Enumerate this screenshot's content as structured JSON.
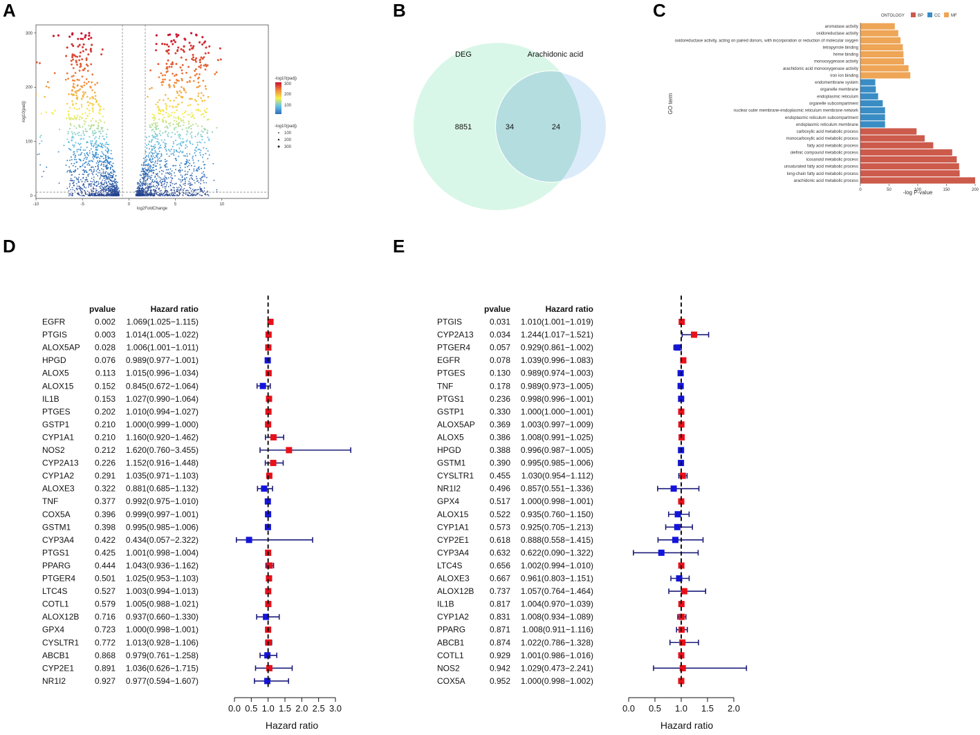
{
  "panels": {
    "a": "A",
    "b": "B",
    "c": "C",
    "d": "D",
    "e": "E"
  },
  "chart_data": [
    {
      "id": "A",
      "type": "scatter",
      "title": "",
      "xlabel": "log2FoldChange",
      "ylabel": "-log10(padj)",
      "xlim": [
        -10,
        15
      ],
      "ylim": [
        -5,
        315
      ],
      "xticks": [
        "-10",
        "-5",
        "0",
        "5",
        "10"
      ],
      "yticks": [
        "0",
        "100",
        "200",
        "300"
      ],
      "legend_color_title": "-log10(padj)",
      "legend_color_ticks": [
        "300",
        "200",
        "100"
      ],
      "legend_size_title": "-log10(padj)",
      "legend_size_ticks": [
        "100",
        "200",
        "300"
      ],
      "colors": {
        "low": "#23408e",
        "mid": "#f7f04d",
        "high": "#c8102e"
      }
    },
    {
      "id": "B",
      "type": "venn",
      "sets": [
        {
          "name": "DEG",
          "only": "8851",
          "color": "#d9f7e8",
          "label_color": "#3a6ea5"
        },
        {
          "name": "Arachidonic acid",
          "only": "24",
          "color": "#dcebfa",
          "label_color": "#7a3c8c"
        }
      ],
      "intersection": "34"
    },
    {
      "id": "C",
      "type": "bar",
      "orientation": "horizontal",
      "xlabel": "-log P-value",
      "ylabel": "GO term",
      "xlim": [
        0,
        200
      ],
      "xticks": [
        "0",
        "50",
        "100",
        "150",
        "200"
      ],
      "legend_title": "ONTOLOGY",
      "legend": [
        {
          "name": "BP",
          "color": "#cc5b4c"
        },
        {
          "name": "CC",
          "color": "#3a8dc4"
        },
        {
          "name": "MF",
          "color": "#eea556"
        }
      ],
      "categories": [
        {
          "term": "aromatase activity",
          "value": 60,
          "ont": "MF"
        },
        {
          "term": "oxidoreductase activity",
          "value": 66,
          "ont": "MF"
        },
        {
          "term": "oxidoreductase activity, acting on paired donors, with incorporation or reduction of molecular oxygen",
          "value": 70,
          "ont": "MF"
        },
        {
          "term": "tetrapyrrole binding",
          "value": 74,
          "ont": "MF"
        },
        {
          "term": "heme binding",
          "value": 75,
          "ont": "MF"
        },
        {
          "term": "monooxygenase activity",
          "value": 76,
          "ont": "MF"
        },
        {
          "term": "arachidonic acid monooxygenase activity",
          "value": 84,
          "ont": "MF"
        },
        {
          "term": "iron ion binding",
          "value": 87,
          "ont": "MF"
        },
        {
          "term": "endomembrane system",
          "value": 26,
          "ont": "CC"
        },
        {
          "term": "organelle membrane",
          "value": 27,
          "ont": "CC"
        },
        {
          "term": "endoplasmic reticulum",
          "value": 31,
          "ont": "CC"
        },
        {
          "term": "organelle subcompartment",
          "value": 39,
          "ont": "CC"
        },
        {
          "term": "nuclear outer membrane-endoplasmic reticulum membrane network",
          "value": 43,
          "ont": "CC"
        },
        {
          "term": "endoplasmic reticulum subcompartment",
          "value": 43,
          "ont": "CC"
        },
        {
          "term": "endoplasmic reticulum membrane",
          "value": 43,
          "ont": "CC"
        },
        {
          "term": "carboxylic acid metabolic process",
          "value": 98,
          "ont": "BP"
        },
        {
          "term": "monocarboxylic acid metabolic process",
          "value": 112,
          "ont": "BP"
        },
        {
          "term": "fatty acid metabolic process",
          "value": 127,
          "ont": "BP"
        },
        {
          "term": "olefinic compound metabolic process",
          "value": 160,
          "ont": "BP"
        },
        {
          "term": "icosanoid metabolic process",
          "value": 168,
          "ont": "BP"
        },
        {
          "term": "unsaturated fatty acid metabolic process",
          "value": 172,
          "ont": "BP"
        },
        {
          "term": "long-chain fatty acid metabolic process",
          "value": 173,
          "ont": "BP"
        },
        {
          "term": "arachidonic acid metabolic process",
          "value": 200,
          "ont": "BP"
        }
      ]
    },
    {
      "id": "D",
      "type": "forest",
      "col_pvalue": "pvalue",
      "col_hr": "Hazard ratio",
      "xlabel": "Hazard ratio",
      "xlim": [
        0,
        3
      ],
      "xticks": [
        "0.0",
        "0.5",
        "1.0",
        "1.5",
        "2.0",
        "2.5",
        "3.0"
      ],
      "colors": {
        "risk": "#e8101a",
        "protective": "#1414dc",
        "ci": "#1b1b7a"
      },
      "rows": [
        {
          "gene": "EGFR",
          "p": "0.002",
          "hr_text": "1.069(1.025−1.115)",
          "hr": 1.069,
          "lo": 1.025,
          "hi": 1.115
        },
        {
          "gene": "PTGIS",
          "p": "0.003",
          "hr_text": "1.014(1.005−1.022)",
          "hr": 1.014,
          "lo": 1.005,
          "hi": 1.022
        },
        {
          "gene": "ALOX5AP",
          "p": "0.028",
          "hr_text": "1.006(1.001−1.011)",
          "hr": 1.006,
          "lo": 1.001,
          "hi": 1.011
        },
        {
          "gene": "HPGD",
          "p": "0.076",
          "hr_text": "0.989(0.977−1.001)",
          "hr": 0.989,
          "lo": 0.977,
          "hi": 1.001
        },
        {
          "gene": "ALOX5",
          "p": "0.113",
          "hr_text": "1.015(0.996−1.034)",
          "hr": 1.015,
          "lo": 0.996,
          "hi": 1.034
        },
        {
          "gene": "ALOX15",
          "p": "0.152",
          "hr_text": "0.845(0.672−1.064)",
          "hr": 0.845,
          "lo": 0.672,
          "hi": 1.064
        },
        {
          "gene": "IL1B",
          "p": "0.153",
          "hr_text": "1.027(0.990−1.064)",
          "hr": 1.027,
          "lo": 0.99,
          "hi": 1.064
        },
        {
          "gene": "PTGES",
          "p": "0.202",
          "hr_text": "1.010(0.994−1.027)",
          "hr": 1.01,
          "lo": 0.994,
          "hi": 1.027
        },
        {
          "gene": "GSTP1",
          "p": "0.210",
          "hr_text": "1.000(0.999−1.000)",
          "hr": 1.0,
          "lo": 0.999,
          "hi": 1.0
        },
        {
          "gene": "CYP1A1",
          "p": "0.210",
          "hr_text": "1.160(0.920−1.462)",
          "hr": 1.16,
          "lo": 0.92,
          "hi": 1.462
        },
        {
          "gene": "NOS2",
          "p": "0.212",
          "hr_text": "1.620(0.760−3.455)",
          "hr": 1.62,
          "lo": 0.76,
          "hi": 3.455
        },
        {
          "gene": "CYP2A13",
          "p": "0.226",
          "hr_text": "1.152(0.916−1.448)",
          "hr": 1.152,
          "lo": 0.916,
          "hi": 1.448
        },
        {
          "gene": "CYP1A2",
          "p": "0.291",
          "hr_text": "1.035(0.971−1.103)",
          "hr": 1.035,
          "lo": 0.971,
          "hi": 1.103
        },
        {
          "gene": "ALOXE3",
          "p": "0.322",
          "hr_text": "0.881(0.685−1.132)",
          "hr": 0.881,
          "lo": 0.685,
          "hi": 1.132
        },
        {
          "gene": "TNF",
          "p": "0.377",
          "hr_text": "0.992(0.975−1.010)",
          "hr": 0.992,
          "lo": 0.975,
          "hi": 1.01
        },
        {
          "gene": "COX5A",
          "p": "0.396",
          "hr_text": "0.999(0.997−1.001)",
          "hr": 0.999,
          "lo": 0.997,
          "hi": 1.001
        },
        {
          "gene": "GSTM1",
          "p": "0.398",
          "hr_text": "0.995(0.985−1.006)",
          "hr": 0.995,
          "lo": 0.985,
          "hi": 1.006
        },
        {
          "gene": "CYP3A4",
          "p": "0.422",
          "hr_text": "0.434(0.057−2.322)",
          "hr": 0.434,
          "lo": 0.057,
          "hi": 2.322
        },
        {
          "gene": "PTGS1",
          "p": "0.425",
          "hr_text": "1.001(0.998−1.004)",
          "hr": 1.001,
          "lo": 0.998,
          "hi": 1.004
        },
        {
          "gene": "PPARG",
          "p": "0.444",
          "hr_text": "1.043(0.936−1.162)",
          "hr": 1.043,
          "lo": 0.936,
          "hi": 1.162
        },
        {
          "gene": "PTGER4",
          "p": "0.501",
          "hr_text": "1.025(0.953−1.103)",
          "hr": 1.025,
          "lo": 0.953,
          "hi": 1.103
        },
        {
          "gene": "LTC4S",
          "p": "0.527",
          "hr_text": "1.003(0.994−1.013)",
          "hr": 1.003,
          "lo": 0.994,
          "hi": 1.013
        },
        {
          "gene": "COTL1",
          "p": "0.579",
          "hr_text": "1.005(0.988−1.021)",
          "hr": 1.005,
          "lo": 0.988,
          "hi": 1.021
        },
        {
          "gene": "ALOX12B",
          "p": "0.716",
          "hr_text": "0.937(0.660−1.330)",
          "hr": 0.937,
          "lo": 0.66,
          "hi": 1.33
        },
        {
          "gene": "GPX4",
          "p": "0.723",
          "hr_text": "1.000(0.998−1.001)",
          "hr": 1.0,
          "lo": 0.998,
          "hi": 1.001
        },
        {
          "gene": "CYSLTR1",
          "p": "0.772",
          "hr_text": "1.013(0.928−1.106)",
          "hr": 1.013,
          "lo": 0.928,
          "hi": 1.106
        },
        {
          "gene": "ABCB1",
          "p": "0.868",
          "hr_text": "0.979(0.761−1.258)",
          "hr": 0.979,
          "lo": 0.761,
          "hi": 1.258
        },
        {
          "gene": "CYP2E1",
          "p": "0.891",
          "hr_text": "1.036(0.626−1.715)",
          "hr": 1.036,
          "lo": 0.626,
          "hi": 1.715
        },
        {
          "gene": "NR1I2",
          "p": "0.927",
          "hr_text": "0.977(0.594−1.607)",
          "hr": 0.977,
          "lo": 0.594,
          "hi": 1.607
        }
      ]
    },
    {
      "id": "E",
      "type": "forest",
      "col_pvalue": "pvalue",
      "col_hr": "Hazard ratio",
      "xlabel": "Hazard ratio",
      "xlim": [
        0,
        2
      ],
      "xticks": [
        "0.0",
        "0.5",
        "1.0",
        "1.5",
        "2.0"
      ],
      "colors": {
        "risk": "#e8101a",
        "protective": "#1414dc",
        "ci": "#1b1b7a"
      },
      "rows": [
        {
          "gene": "PTGIS",
          "p": "0.031",
          "hr_text": "1.010(1.001−1.019)",
          "hr": 1.01,
          "lo": 1.001,
          "hi": 1.019
        },
        {
          "gene": "CYP2A13",
          "p": "0.034",
          "hr_text": "1.244(1.017−1.521)",
          "hr": 1.244,
          "lo": 1.017,
          "hi": 1.521
        },
        {
          "gene": "PTGER4",
          "p": "0.057",
          "hr_text": "0.929(0.861−1.002)",
          "hr": 0.929,
          "lo": 0.861,
          "hi": 1.002
        },
        {
          "gene": "EGFR",
          "p": "0.078",
          "hr_text": "1.039(0.996−1.083)",
          "hr": 1.039,
          "lo": 0.996,
          "hi": 1.083
        },
        {
          "gene": "PTGES",
          "p": "0.130",
          "hr_text": "0.989(0.974−1.003)",
          "hr": 0.989,
          "lo": 0.974,
          "hi": 1.003
        },
        {
          "gene": "TNF",
          "p": "0.178",
          "hr_text": "0.989(0.973−1.005)",
          "hr": 0.989,
          "lo": 0.973,
          "hi": 1.005
        },
        {
          "gene": "PTGS1",
          "p": "0.236",
          "hr_text": "0.998(0.996−1.001)",
          "hr": 0.998,
          "lo": 0.996,
          "hi": 1.001
        },
        {
          "gene": "GSTP1",
          "p": "0.330",
          "hr_text": "1.000(1.000−1.001)",
          "hr": 1.0,
          "lo": 1.0,
          "hi": 1.001
        },
        {
          "gene": "ALOX5AP",
          "p": "0.369",
          "hr_text": "1.003(0.997−1.009)",
          "hr": 1.003,
          "lo": 0.997,
          "hi": 1.009
        },
        {
          "gene": "ALOX5",
          "p": "0.386",
          "hr_text": "1.008(0.991−1.025)",
          "hr": 1.008,
          "lo": 0.991,
          "hi": 1.025
        },
        {
          "gene": "HPGD",
          "p": "0.388",
          "hr_text": "0.996(0.987−1.005)",
          "hr": 0.996,
          "lo": 0.987,
          "hi": 1.005
        },
        {
          "gene": "GSTM1",
          "p": "0.390",
          "hr_text": "0.995(0.985−1.006)",
          "hr": 0.995,
          "lo": 0.985,
          "hi": 1.006
        },
        {
          "gene": "CYSLTR1",
          "p": "0.455",
          "hr_text": "1.030(0.954−1.112)",
          "hr": 1.03,
          "lo": 0.954,
          "hi": 1.112
        },
        {
          "gene": "NR1I2",
          "p": "0.496",
          "hr_text": "0.857(0.551−1.336)",
          "hr": 0.857,
          "lo": 0.551,
          "hi": 1.336
        },
        {
          "gene": "GPX4",
          "p": "0.517",
          "hr_text": "1.000(0.998−1.001)",
          "hr": 1.0,
          "lo": 0.998,
          "hi": 1.001
        },
        {
          "gene": "ALOX15",
          "p": "0.522",
          "hr_text": "0.935(0.760−1.150)",
          "hr": 0.935,
          "lo": 0.76,
          "hi": 1.15
        },
        {
          "gene": "CYP1A1",
          "p": "0.573",
          "hr_text": "0.925(0.705−1.213)",
          "hr": 0.925,
          "lo": 0.705,
          "hi": 1.213
        },
        {
          "gene": "CYP2E1",
          "p": "0.618",
          "hr_text": "0.888(0.558−1.415)",
          "hr": 0.888,
          "lo": 0.558,
          "hi": 1.415
        },
        {
          "gene": "CYP3A4",
          "p": "0.632",
          "hr_text": "0.622(0.090−1.322)",
          "hr": 0.622,
          "lo": 0.09,
          "hi": 1.322
        },
        {
          "gene": "LTC4S",
          "p": "0.656",
          "hr_text": "1.002(0.994−1.010)",
          "hr": 1.002,
          "lo": 0.994,
          "hi": 1.01
        },
        {
          "gene": "ALOXE3",
          "p": "0.667",
          "hr_text": "0.961(0.803−1.151)",
          "hr": 0.961,
          "lo": 0.803,
          "hi": 1.151
        },
        {
          "gene": "ALOX12B",
          "p": "0.737",
          "hr_text": "1.057(0.764−1.464)",
          "hr": 1.057,
          "lo": 0.764,
          "hi": 1.464
        },
        {
          "gene": "IL1B",
          "p": "0.817",
          "hr_text": "1.004(0.970−1.039)",
          "hr": 1.004,
          "lo": 0.97,
          "hi": 1.039
        },
        {
          "gene": "CYP1A2",
          "p": "0.831",
          "hr_text": "1.008(0.934−1.089)",
          "hr": 1.008,
          "lo": 0.934,
          "hi": 1.089
        },
        {
          "gene": "PPARG",
          "p": "0.871",
          "hr_text": "1.008(0.911−1.116)",
          "hr": 1.008,
          "lo": 0.911,
          "hi": 1.116
        },
        {
          "gene": "ABCB1",
          "p": "0.874",
          "hr_text": "1.022(0.786−1.328)",
          "hr": 1.022,
          "lo": 0.786,
          "hi": 1.328
        },
        {
          "gene": "COTL1",
          "p": "0.929",
          "hr_text": "1.001(0.986−1.016)",
          "hr": 1.001,
          "lo": 0.986,
          "hi": 1.016
        },
        {
          "gene": "NOS2",
          "p": "0.942",
          "hr_text": "1.029(0.473−2.241)",
          "hr": 1.029,
          "lo": 0.473,
          "hi": 2.241
        },
        {
          "gene": "COX5A",
          "p": "0.952",
          "hr_text": "1.000(0.998−1.002)",
          "hr": 1.0,
          "lo": 0.998,
          "hi": 1.002
        }
      ]
    }
  ]
}
